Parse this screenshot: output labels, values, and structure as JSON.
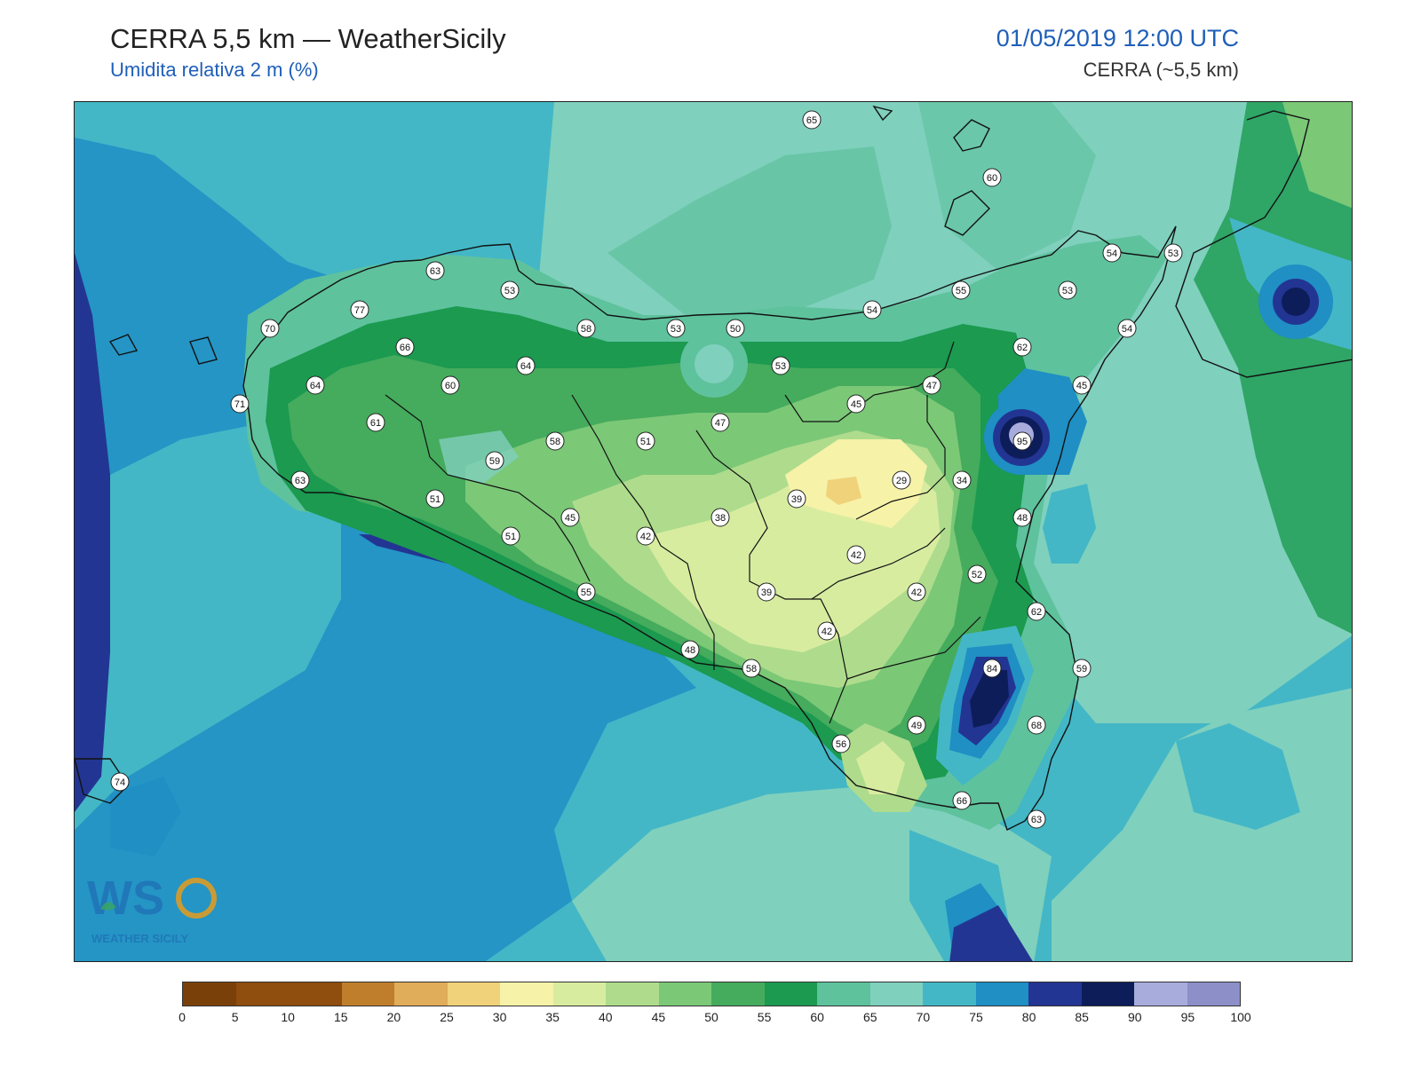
{
  "header": {
    "title": "CERRA 5,5 km — WeatherSicily",
    "subtitle": "Umidita relativa 2 m (%)",
    "datetime": "01/05/2019 12:00 UTC",
    "source": "CERRA (~5,5 km)"
  },
  "logo": {
    "text": "WEATHER SICILY",
    "mark": "WS"
  },
  "colorbar": {
    "ticks": [
      "0",
      "5",
      "10",
      "15",
      "20",
      "25",
      "30",
      "35",
      "40",
      "45",
      "50",
      "55",
      "60",
      "65",
      "70",
      "75",
      "80",
      "85",
      "90",
      "95",
      "100"
    ],
    "colors": [
      "#7a4009",
      "#8f4d0e",
      "#8f4d0e",
      "#bf7e2c",
      "#e0ad5a",
      "#f0d27a",
      "#f6f2a8",
      "#d8eca0",
      "#aedc8c",
      "#7bc877",
      "#45ab5d",
      "#1b9a50",
      "#5ec29d",
      "#7fd0bd",
      "#43b7c6",
      "#1f8fc4",
      "#233592",
      "#0d1d5a",
      "#a7acdc",
      "#8d8fc8"
    ]
  },
  "stations": [
    {
      "value": "65"
    },
    {
      "value": "60"
    },
    {
      "value": "63"
    },
    {
      "value": "53"
    },
    {
      "value": "77"
    },
    {
      "value": "70"
    },
    {
      "value": "66"
    },
    {
      "value": "58"
    },
    {
      "value": "53"
    },
    {
      "value": "50"
    },
    {
      "value": "54"
    },
    {
      "value": "55"
    },
    {
      "value": "53"
    },
    {
      "value": "54"
    },
    {
      "value": "53"
    },
    {
      "value": "62"
    },
    {
      "value": "54"
    },
    {
      "value": "64"
    },
    {
      "value": "60"
    },
    {
      "value": "64"
    },
    {
      "value": "53"
    },
    {
      "value": "47"
    },
    {
      "value": "45"
    },
    {
      "value": "45"
    },
    {
      "value": "71"
    },
    {
      "value": "61"
    },
    {
      "value": "47"
    },
    {
      "value": "95"
    },
    {
      "value": "58"
    },
    {
      "value": "51"
    },
    {
      "value": "59"
    },
    {
      "value": "63"
    },
    {
      "value": "29"
    },
    {
      "value": "34"
    },
    {
      "value": "39"
    },
    {
      "value": "51"
    },
    {
      "value": "45"
    },
    {
      "value": "38"
    },
    {
      "value": "48"
    },
    {
      "value": "42"
    },
    {
      "value": "51"
    },
    {
      "value": "42"
    },
    {
      "value": "52"
    },
    {
      "value": "55"
    },
    {
      "value": "39"
    },
    {
      "value": "42"
    },
    {
      "value": "62"
    },
    {
      "value": "42"
    },
    {
      "value": "48"
    },
    {
      "value": "58"
    },
    {
      "value": "84"
    },
    {
      "value": "59"
    },
    {
      "value": "68"
    },
    {
      "value": "49"
    },
    {
      "value": "56"
    },
    {
      "value": "74"
    },
    {
      "value": "66"
    },
    {
      "value": "63"
    }
  ]
}
